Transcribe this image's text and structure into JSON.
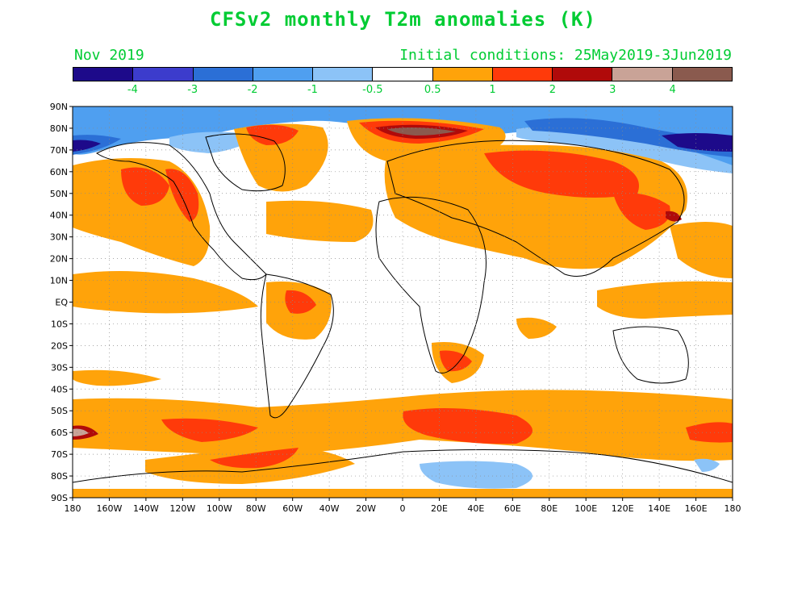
{
  "title": "CFSv2 monthly T2m anomalies (K)",
  "valid_month": "Nov 2019",
  "initial_conditions": "Initial conditions: 25May2019-3Jun2019",
  "colorbar": {
    "colors": [
      "#1d0a8a",
      "#3c3ccc",
      "#2b6fd6",
      "#4f9ff0",
      "#8cc3f7",
      "#ffffff",
      "#ffa30a",
      "#ff3a0a",
      "#b00a0a",
      "#c9a397",
      "#8a5a4e"
    ],
    "tick_labels": [
      "-4",
      "-3",
      "-2",
      "-1",
      "-0.5",
      "0.5",
      "1",
      "2",
      "3",
      "4"
    ]
  },
  "map": {
    "lat_labels": [
      "90N",
      "80N",
      "70N",
      "60N",
      "50N",
      "40N",
      "30N",
      "20N",
      "10N",
      "EQ",
      "10S",
      "20S",
      "30S",
      "40S",
      "50S",
      "60S",
      "70S",
      "80S",
      "90S"
    ],
    "lon_labels": [
      "180",
      "160W",
      "140W",
      "120W",
      "100W",
      "80W",
      "60W",
      "40W",
      "20W",
      "0",
      "20E",
      "40E",
      "60E",
      "80E",
      "100E",
      "120E",
      "140E",
      "160E",
      "180"
    ]
  },
  "style": {
    "label_color": "#00cc33"
  }
}
